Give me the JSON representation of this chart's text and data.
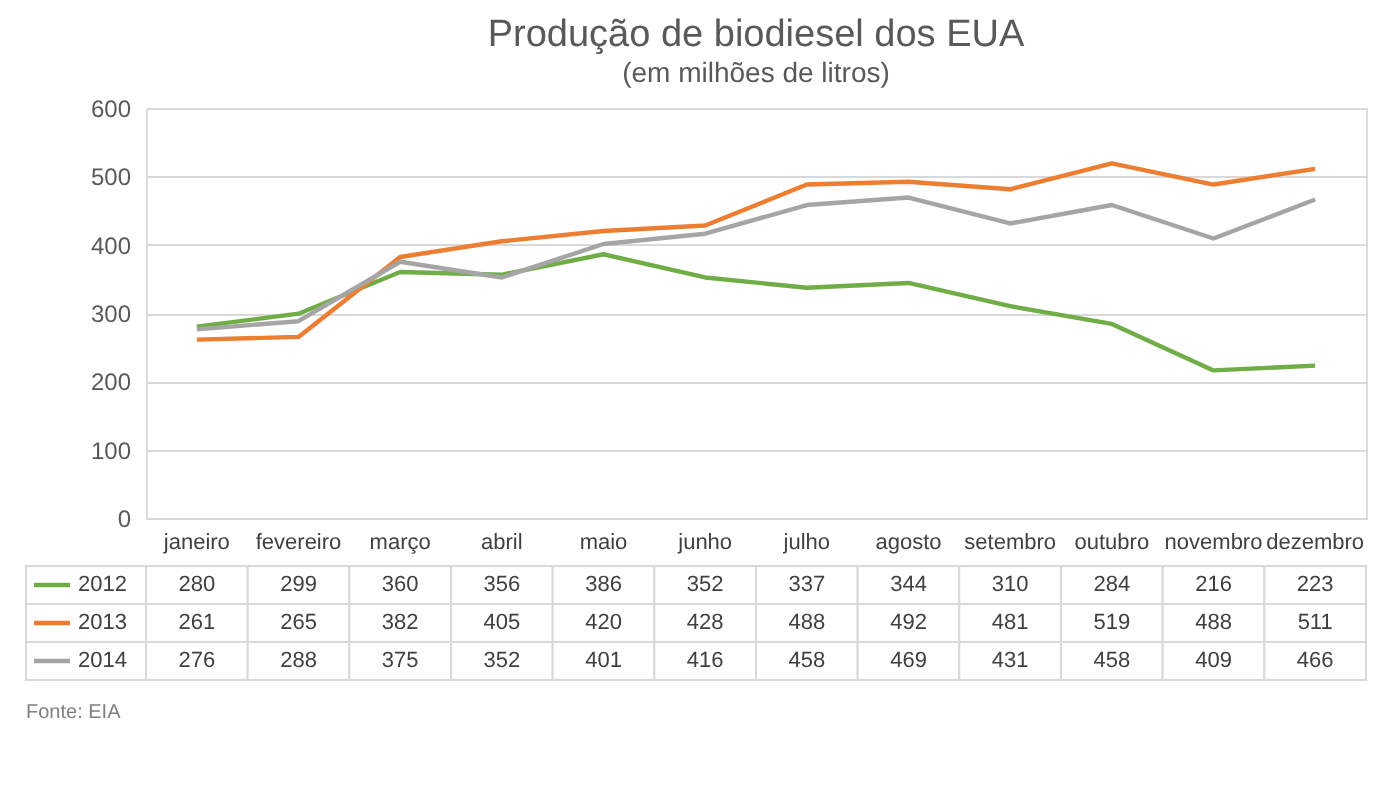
{
  "chart_data": {
    "type": "line",
    "title": "Produção de biodiesel dos EUA",
    "subtitle": "(em milhões de litros)",
    "categories": [
      "janeiro",
      "fevereiro",
      "março",
      "abril",
      "maio",
      "junho",
      "julho",
      "agosto",
      "setembro",
      "outubro",
      "novembro",
      "dezembro"
    ],
    "series": [
      {
        "name": "2012",
        "color": "#70ad47",
        "values": [
          280,
          299,
          360,
          356,
          386,
          352,
          337,
          344,
          310,
          284,
          216,
          223
        ]
      },
      {
        "name": "2013",
        "color": "#ed7d31",
        "values": [
          261,
          265,
          382,
          405,
          420,
          428,
          488,
          492,
          481,
          519,
          488,
          511
        ]
      },
      {
        "name": "2014",
        "color": "#a5a5a5",
        "values": [
          276,
          288,
          375,
          352,
          401,
          416,
          458,
          469,
          431,
          458,
          409,
          466
        ]
      }
    ],
    "ylim": [
      0,
      600
    ],
    "yticks": [
      0,
      100,
      200,
      300,
      400,
      500,
      600
    ],
    "grid": "y",
    "marker": "none",
    "line_style": "solid",
    "legend": "bottom",
    "data_labels": true,
    "annotations": [
      "Fonte: EIA"
    ]
  }
}
